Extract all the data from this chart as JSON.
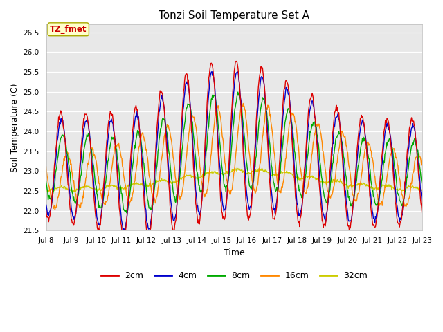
{
  "title": "Tonzi Soil Temperature Set A",
  "xlabel": "Time",
  "ylabel": "Soil Temperature (C)",
  "ylim": [
    21.5,
    26.7
  ],
  "xlim": [
    0,
    360
  ],
  "fig_bg_color": "#e8e8e8",
  "plot_bg_color": "#e8e8e8",
  "annotation_text": "TZ_fmet",
  "annotation_color": "#cc0000",
  "annotation_bg": "#ffffcc",
  "annotation_border": "#aaaa00",
  "colors": {
    "2cm": "#dd0000",
    "4cm": "#0000cc",
    "8cm": "#00aa00",
    "16cm": "#ff8800",
    "32cm": "#cccc00"
  },
  "legend_labels": [
    "2cm",
    "4cm",
    "8cm",
    "16cm",
    "32cm"
  ],
  "x_tick_labels": [
    "Jul 8",
    "Jul 9",
    "Jul 10",
    "Jul 11",
    "Jul 12",
    "Jul 13",
    "Jul 14",
    "Jul 15",
    "Jul 16",
    "Jul 17",
    "Jul 18",
    "Jul 19",
    "Jul 20",
    "Jul 21",
    "Jul 22",
    "Jul 23"
  ],
  "x_tick_positions": [
    0,
    24,
    48,
    72,
    96,
    120,
    144,
    168,
    192,
    216,
    240,
    264,
    288,
    312,
    336,
    360
  ],
  "yticks": [
    21.5,
    22.0,
    22.5,
    23.0,
    23.5,
    24.0,
    24.5,
    25.0,
    25.5,
    26.0,
    26.5
  ]
}
